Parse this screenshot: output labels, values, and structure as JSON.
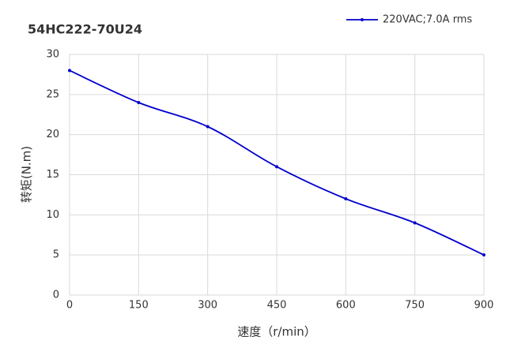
{
  "chart_data": {
    "type": "line",
    "title": "54HC222-70U24",
    "x_label": "速度（r/min）",
    "y_label": "转矩(N.m)",
    "x": [
      0,
      150,
      300,
      450,
      600,
      750,
      900
    ],
    "series": [
      {
        "name": "220VAC;7.0A rms",
        "color": "#0000cc",
        "values": [
          28,
          24,
          21,
          16,
          12,
          9,
          5
        ]
      }
    ],
    "xlim": [
      0,
      900
    ],
    "xticks": [
      0,
      150,
      300,
      450,
      600,
      750,
      900
    ],
    "ylim": [
      0,
      30
    ],
    "yticks": [
      0,
      5,
      10,
      15,
      20,
      25,
      30
    ],
    "grid": true,
    "legend": "top-right",
    "smooth": true
  }
}
